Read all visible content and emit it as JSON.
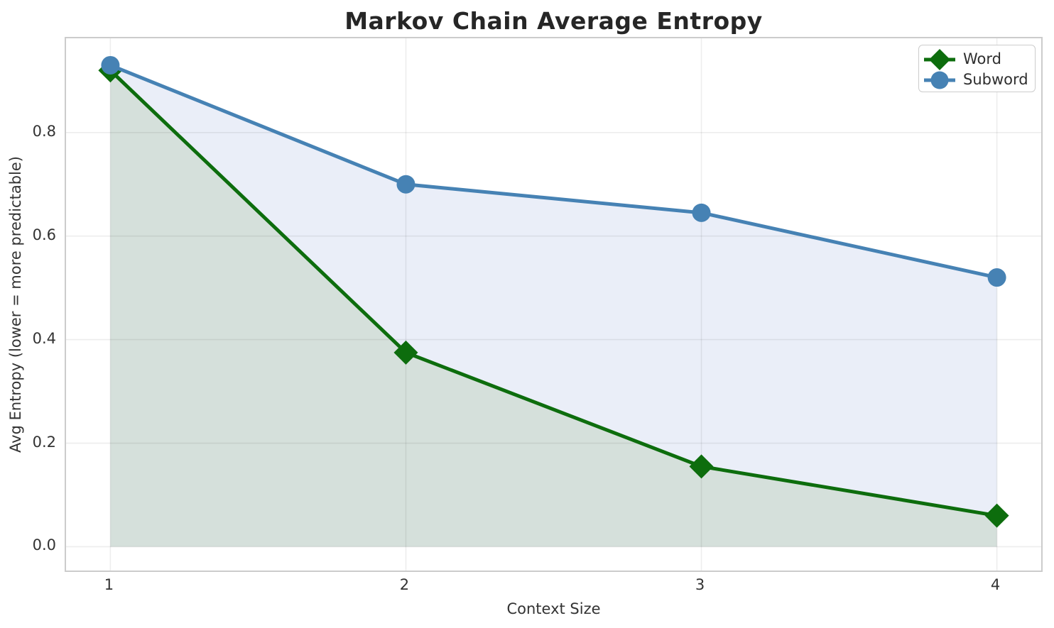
{
  "chart_data": {
    "type": "line",
    "title": "Markov Chain Average Entropy",
    "xlabel": "Context Size",
    "ylabel": "Avg Entropy (lower = more predictable)",
    "x": [
      1,
      2,
      3,
      4
    ],
    "series": [
      {
        "name": "Word",
        "marker": "diamond",
        "color": "#0d6d0d",
        "area_color": "#d5e0db",
        "values": [
          0.92,
          0.375,
          0.155,
          0.06
        ]
      },
      {
        "name": "Subword",
        "marker": "circle",
        "color": "#4682b4",
        "area_color": "#eaeef8",
        "values": [
          0.93,
          0.7,
          0.645,
          0.52
        ]
      }
    ],
    "xtick_labels": [
      "1",
      "2",
      "3",
      "4"
    ],
    "xtick_values": [
      1,
      2,
      3,
      4
    ],
    "ytick_labels": [
      "0.0",
      "0.2",
      "0.4",
      "0.6",
      "0.8"
    ],
    "ytick_values": [
      0.0,
      0.2,
      0.4,
      0.6,
      0.8
    ],
    "xlim": [
      0.85,
      4.15
    ],
    "ylim": [
      -0.046,
      0.982
    ],
    "grid": true,
    "grid_color": "rgba(0,0,0,0.07)",
    "area_baseline": 0,
    "legend_position": "upper right",
    "line_width": 5,
    "background": "#ffffff"
  }
}
